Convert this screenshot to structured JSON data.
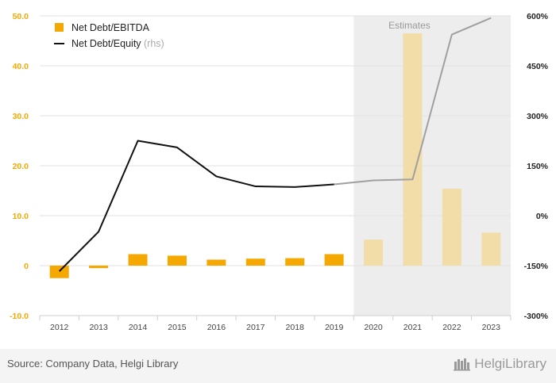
{
  "chart_data": {
    "type": "bar+line",
    "categories": [
      "2012",
      "2013",
      "2014",
      "2015",
      "2016",
      "2017",
      "2018",
      "2019",
      "2020",
      "2021",
      "2022",
      "2023"
    ],
    "estimate_start_index": 8,
    "estimates_label": "Estimates",
    "series": [
      {
        "name": "Net Debt/EBITDA",
        "kind": "bar",
        "axis": "left",
        "color": "#F5A800",
        "estimate_color": "#F2DDA8",
        "values": [
          -2.5,
          -0.5,
          2.3,
          2.0,
          1.2,
          1.4,
          1.5,
          2.3,
          5.2,
          46.5,
          15.4,
          6.6
        ]
      },
      {
        "name": "Net Debt/Equity",
        "legend_suffix": "(rhs)",
        "kind": "line",
        "axis": "right",
        "color": "#111111",
        "estimate_color": "#A0A0A0",
        "values": [
          -167,
          -48,
          225,
          205,
          118,
          88,
          86,
          94,
          106,
          109,
          544,
          594
        ]
      }
    ],
    "y_left": {
      "ylim": [
        -10,
        50
      ],
      "ticks": [
        50,
        40,
        30,
        20,
        10,
        0,
        -10
      ],
      "tick_labels": [
        "50.0",
        "40.0",
        "30.0",
        "20.0",
        "10.0",
        "0",
        "-10.0"
      ],
      "color": "#F5A800"
    },
    "y_right": {
      "ylim": [
        -300,
        600
      ],
      "ticks": [
        600,
        450,
        300,
        150,
        0,
        -150,
        -300
      ],
      "tick_labels": [
        "600%",
        "450%",
        "300%",
        "150%",
        "0%",
        "-150%",
        "-300%"
      ]
    },
    "legend_placement": "top-left",
    "grid": true
  },
  "footer": {
    "source": "Source: Company Data, Helgi Library",
    "brand": "HelgiLibrary"
  }
}
